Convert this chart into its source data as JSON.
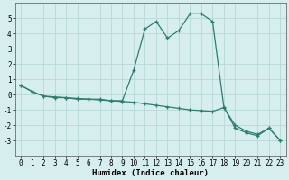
{
  "xlabel": "Humidex (Indice chaleur)",
  "x": [
    0,
    1,
    2,
    3,
    4,
    5,
    6,
    7,
    8,
    9,
    10,
    11,
    12,
    13,
    14,
    15,
    16,
    17,
    18,
    19,
    20,
    21,
    22,
    23
  ],
  "line1_y": [
    0.6,
    0.2,
    -0.1,
    -0.2,
    -0.2,
    -0.3,
    -0.3,
    -0.3,
    -0.4,
    -0.4,
    1.6,
    4.3,
    4.8,
    3.7,
    4.2,
    5.3,
    5.3,
    4.8,
    -0.8,
    -2.2,
    -2.5,
    -2.7,
    -2.2,
    -3.0
  ],
  "line2_y": [
    0.6,
    0.2,
    -0.1,
    -0.15,
    -0.2,
    -0.25,
    -0.3,
    -0.35,
    -0.4,
    -0.45,
    -0.5,
    -0.6,
    -0.7,
    -0.8,
    -0.9,
    -1.0,
    -1.05,
    -1.1,
    -0.85,
    -2.0,
    -2.4,
    -2.6,
    -2.2,
    -3.0
  ],
  "line_color": "#2e7d6e",
  "bg_color": "#d6eeee",
  "grid_color": "#b8d8d8",
  "ylim": [
    -4,
    6
  ],
  "xlim": [
    -0.5,
    23.5
  ],
  "yticks": [
    -3,
    -2,
    -1,
    0,
    1,
    2,
    3,
    4,
    5
  ],
  "xticks": [
    0,
    1,
    2,
    3,
    4,
    5,
    6,
    7,
    8,
    9,
    10,
    11,
    12,
    13,
    14,
    15,
    16,
    17,
    18,
    19,
    20,
    21,
    22,
    23
  ],
  "tick_fontsize": 5.5,
  "xlabel_fontsize": 6.5,
  "marker_size": 3.5,
  "line_width": 0.9
}
